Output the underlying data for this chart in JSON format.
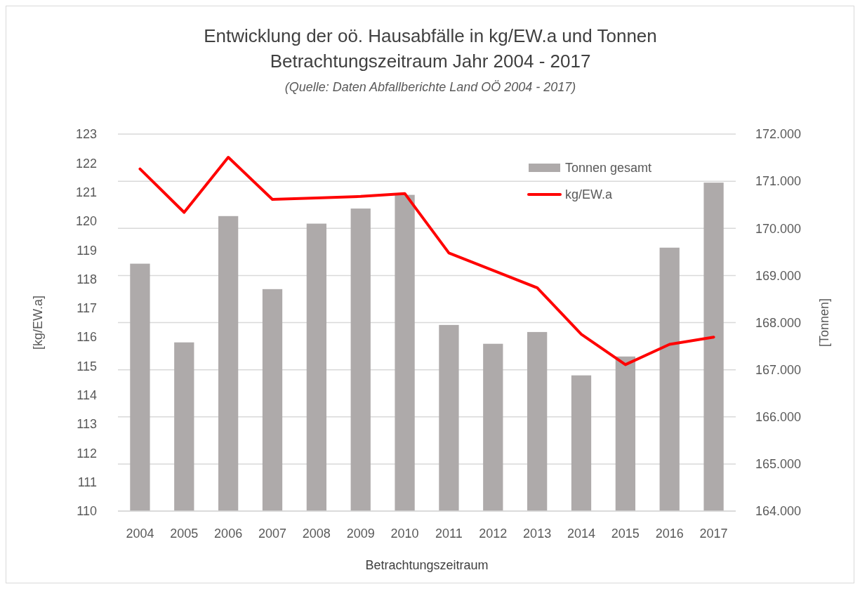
{
  "chart_data": {
    "type": "bar",
    "title": "Entwicklung der oö. Hausabfälle in kg/EW.a und Tonnen",
    "subtitle": "Betrachtungszeitraum Jahr 2004 - 2017",
    "annotations": [
      "(Quelle: Daten Abfallberichte Land OÖ 2004 - 2017)"
    ],
    "xlabel": "Betrachtungszeitraum",
    "ylabel": "[kg/EW.a]",
    "y2label": "[Tonnen]",
    "categories": [
      "2004",
      "2005",
      "2006",
      "2007",
      "2008",
      "2009",
      "2010",
      "2011",
      "2012",
      "2013",
      "2014",
      "2015",
      "2016",
      "2017"
    ],
    "series": [
      {
        "name": "Tonnen gesamt",
        "axis": "y2",
        "color": "#aeaaaa",
        "values": [
          169250,
          167580,
          170260,
          168710,
          170100,
          170420,
          170710,
          167950,
          167550,
          167800,
          166880,
          167280,
          169590,
          170970
        ]
      },
      {
        "name": "kg/EW.a",
        "type": "line",
        "axis": "y",
        "color": "#ff0000",
        "values": [
          121.8,
          120.3,
          122.2,
          120.75,
          120.8,
          120.85,
          120.95,
          118.9,
          118.3,
          117.7,
          116.1,
          115.05,
          115.75,
          116.0
        ]
      }
    ],
    "ylim": [
      110,
      123
    ],
    "yticks": [
      110,
      111,
      112,
      113,
      114,
      115,
      116,
      117,
      118,
      119,
      120,
      121,
      122,
      123
    ],
    "y2lim": [
      164000,
      172000
    ],
    "y2ticks": [
      {
        "value": 164000,
        "label": "164.000"
      },
      {
        "value": 165000,
        "label": "165.000"
      },
      {
        "value": 166000,
        "label": "166.000"
      },
      {
        "value": 167000,
        "label": "167.000"
      },
      {
        "value": 168000,
        "label": "168.000"
      },
      {
        "value": 169000,
        "label": "169.000"
      },
      {
        "value": 170000,
        "label": "170.000"
      },
      {
        "value": 171000,
        "label": "171.000"
      },
      {
        "value": 172000,
        "label": "172.000"
      }
    ],
    "grid": "y",
    "legend": "top right",
    "marker": "none",
    "line_style": "solid"
  }
}
